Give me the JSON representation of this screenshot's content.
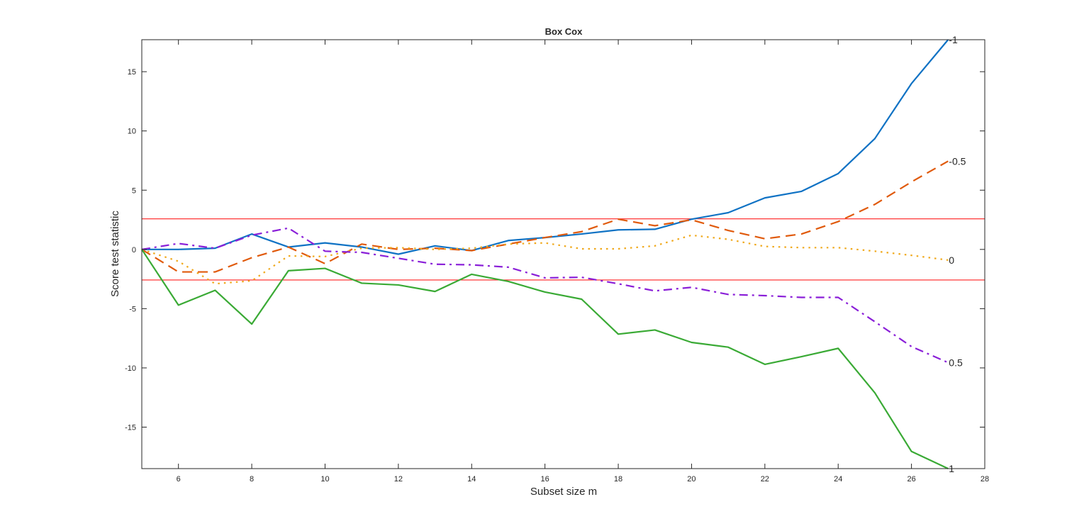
{
  "chart_data": {
    "type": "line",
    "title": "Box Cox",
    "xlabel": "Subset size m",
    "ylabel": "Score test statistic",
    "xlim": [
      5,
      28
    ],
    "ylim": [
      -18.5,
      17.7
    ],
    "xticks": [
      6,
      8,
      10,
      12,
      14,
      16,
      18,
      20,
      22,
      24,
      26,
      28
    ],
    "yticks": [
      -15,
      -10,
      -5,
      0,
      5,
      10,
      15
    ],
    "grid": false,
    "x": [
      5,
      6,
      7,
      8,
      9,
      10,
      11,
      12,
      13,
      14,
      15,
      16,
      17,
      18,
      19,
      20,
      21,
      22,
      23,
      24,
      25,
      26,
      27
    ],
    "reference_lines": [
      2.58,
      -2.58
    ],
    "reference_color": "#ff2020",
    "series": [
      {
        "label": "-1",
        "color": "#0f72c4",
        "style": "solid",
        "values": [
          0,
          0,
          0.1,
          1.3,
          0.2,
          0.55,
          0.2,
          -0.4,
          0.3,
          -0.1,
          0.75,
          1.0,
          1.3,
          1.65,
          1.7,
          2.55,
          3.1,
          4.35,
          4.9,
          6.4,
          9.35,
          14.0,
          17.7
        ]
      },
      {
        "label": "-0.5",
        "color": "#e05a0c",
        "style": "dashed",
        "values": [
          0,
          -1.9,
          -1.9,
          -0.7,
          0.2,
          -1.2,
          0.45,
          0,
          0.1,
          -0.1,
          0.45,
          1.0,
          1.5,
          2.55,
          2.0,
          2.5,
          1.6,
          0.9,
          1.3,
          2.35,
          3.8,
          5.7,
          7.45
        ]
      },
      {
        "label": "0",
        "color": "#f0a91c",
        "style": "dotted",
        "values": [
          0,
          -1.0,
          -2.9,
          -2.65,
          -0.55,
          -0.6,
          0.1,
          0.15,
          0,
          0.1,
          0.45,
          0.55,
          0.05,
          0.05,
          0.3,
          1.2,
          0.85,
          0.25,
          0.15,
          0.15,
          -0.15,
          -0.5,
          -0.9
        ]
      },
      {
        "label": "0.5",
        "color": "#8a1fd8",
        "style": "dashdot",
        "values": [
          0,
          0.5,
          0.1,
          1.2,
          1.8,
          -0.15,
          -0.25,
          -0.75,
          -1.25,
          -1.3,
          -1.5,
          -2.4,
          -2.35,
          -2.9,
          -3.5,
          -3.2,
          -3.8,
          -3.9,
          -4.05,
          -4.05,
          -6.1,
          -8.2,
          -9.55
        ]
      },
      {
        "label": "1",
        "color": "#3aaa35",
        "style": "solid",
        "values": [
          0,
          -4.7,
          -3.45,
          -6.3,
          -1.8,
          -1.6,
          -2.85,
          -3.0,
          -3.55,
          -2.1,
          -2.7,
          -3.6,
          -4.2,
          -7.15,
          -6.8,
          -7.85,
          -8.25,
          -9.7,
          -9.05,
          -8.35,
          -12.1,
          -17.05,
          -18.5
        ]
      }
    ]
  }
}
